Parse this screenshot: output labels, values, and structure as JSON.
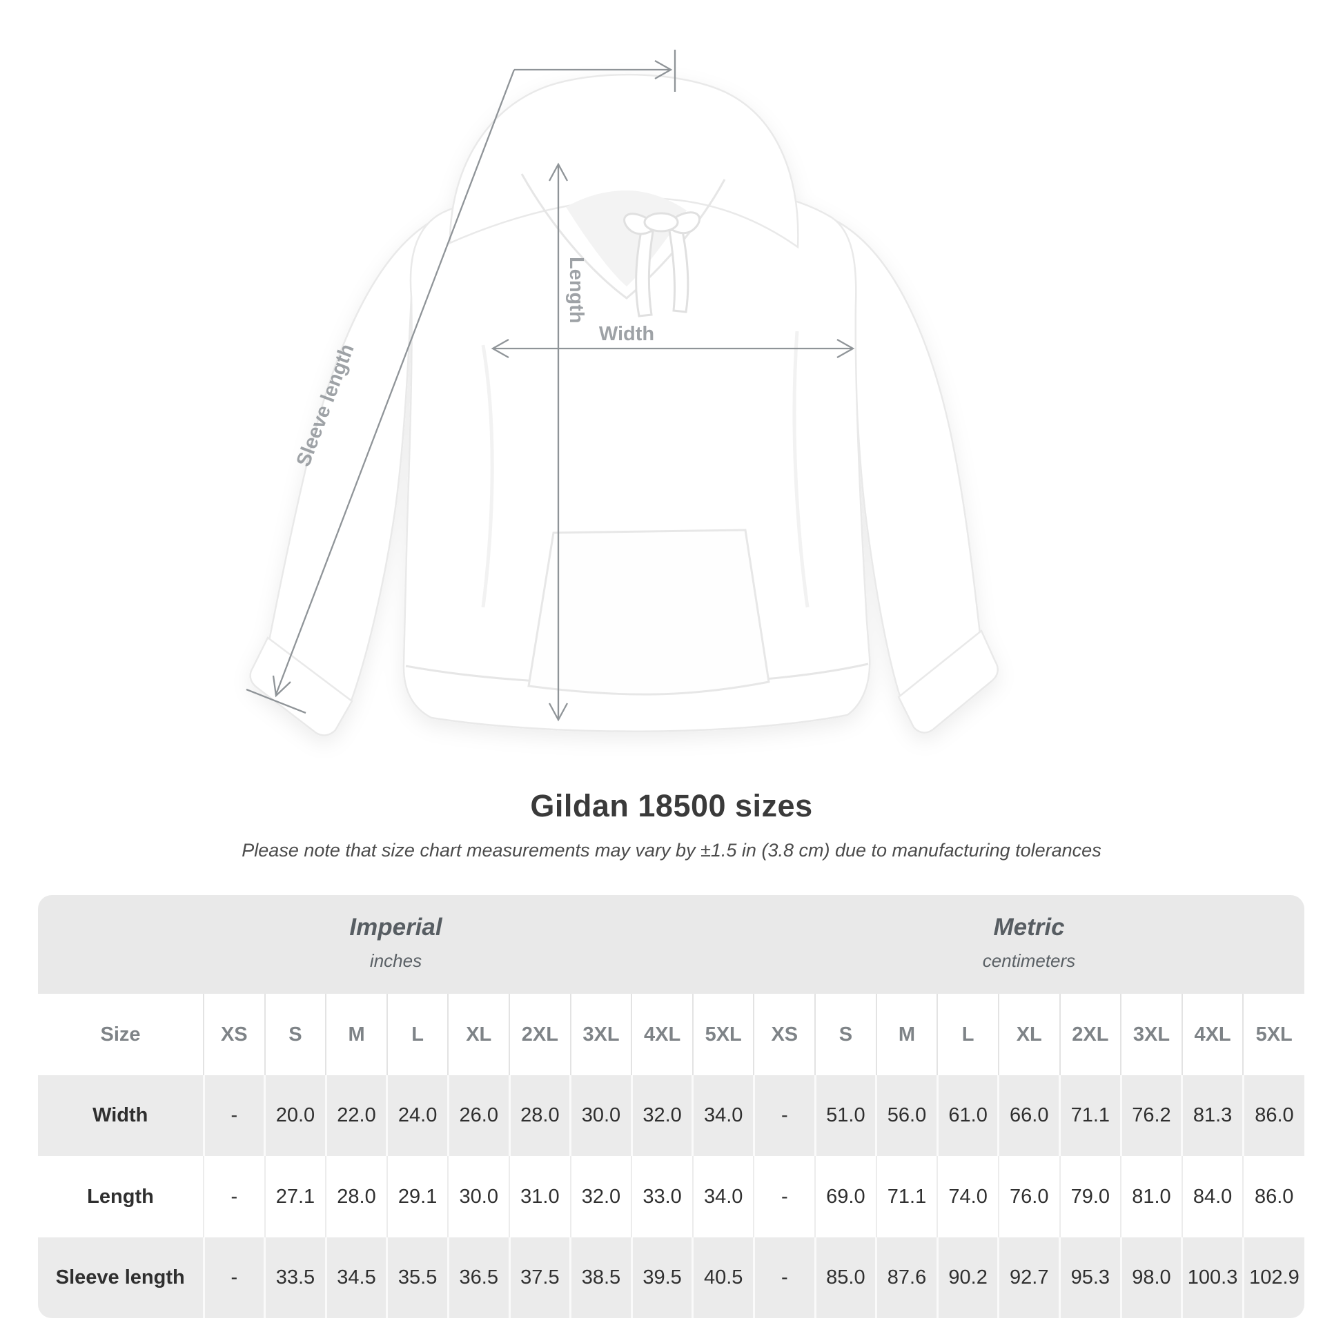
{
  "diagram": {
    "labels": {
      "length": "Length",
      "width": "Width",
      "sleeve": "Sleeve length"
    },
    "line_color": "#8f9498",
    "label_color": "#9ea2a6"
  },
  "title": "Gildan 18500 sizes",
  "subtitle": "Please note that size chart measurements may vary by ±1.5 in (3.8 cm) due to manufacturing tolerances",
  "colors": {
    "band_background": "#e9e9e9",
    "row_gray": "#ebebeb",
    "title_text": "#3a3a3a"
  },
  "table": {
    "groups": [
      {
        "name": "Imperial",
        "unit": "inches"
      },
      {
        "name": "Metric",
        "unit": "centimeters"
      }
    ],
    "size_header": "Size",
    "sizes": [
      "XS",
      "S",
      "M",
      "L",
      "XL",
      "2XL",
      "3XL",
      "4XL",
      "5XL"
    ],
    "rows": [
      {
        "label": "Width",
        "imperial": [
          "-",
          "20.0",
          "22.0",
          "24.0",
          "26.0",
          "28.0",
          "30.0",
          "32.0",
          "34.0"
        ],
        "metric": [
          "-",
          "51.0",
          "56.0",
          "61.0",
          "66.0",
          "71.1",
          "76.2",
          "81.3",
          "86.0"
        ]
      },
      {
        "label": "Length",
        "imperial": [
          "-",
          "27.1",
          "28.0",
          "29.1",
          "30.0",
          "31.0",
          "32.0",
          "33.0",
          "34.0"
        ],
        "metric": [
          "-",
          "69.0",
          "71.1",
          "74.0",
          "76.0",
          "79.0",
          "81.0",
          "84.0",
          "86.0"
        ]
      },
      {
        "label": "Sleeve length",
        "imperial": [
          "-",
          "33.5",
          "34.5",
          "35.5",
          "36.5",
          "37.5",
          "38.5",
          "39.5",
          "40.5"
        ],
        "metric": [
          "-",
          "85.0",
          "87.6",
          "90.2",
          "92.7",
          "95.3",
          "98.0",
          "100.3",
          "102.9"
        ]
      }
    ]
  }
}
